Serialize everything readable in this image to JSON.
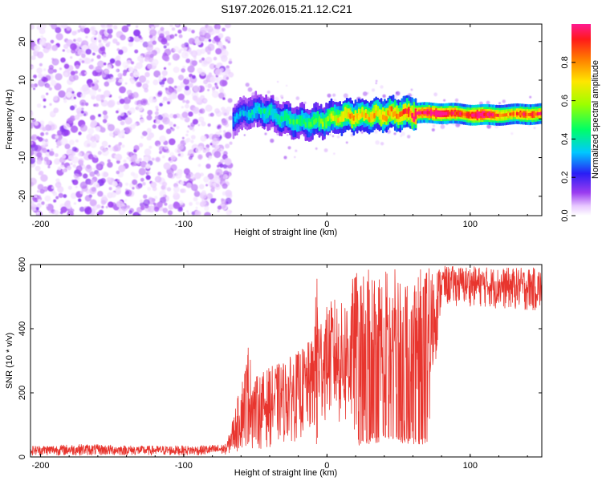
{
  "title": "S197.2026.015.21.12.C21",
  "colors": {
    "snr_line": "#e8352e",
    "frame": "#000000",
    "scatter_base": "#7a1fe0"
  },
  "chart_data": [
    {
      "id": "spectrogram",
      "type": "heatmap",
      "title": "S197.2026.015.21.12.C21",
      "xlabel": "Height of straight line (km)",
      "ylabel": "Frequency (Hz)",
      "xlim": [
        -207,
        150
      ],
      "ylim": [
        -25,
        24.5
      ],
      "xticks": [
        -200,
        -100,
        0,
        100
      ],
      "xtick_labels": [
        "-200",
        "-100",
        "0",
        "100"
      ],
      "yticks": [
        -20,
        -10,
        0,
        10,
        20
      ],
      "ytick_labels": [
        "-20",
        "-10",
        "0",
        "10",
        "20"
      ],
      "noise_region_x": [
        -207,
        -67
      ],
      "signal_region_x": [
        -67,
        150
      ],
      "ridge": {
        "x": [
          -67,
          -55,
          -45,
          -35,
          -25,
          -15,
          -5,
          5,
          15,
          25,
          35,
          45,
          55,
          62,
          75,
          85,
          95,
          105,
          115,
          125,
          135,
          150
        ],
        "y": [
          0.0,
          1.8,
          2.2,
          0.5,
          -0.5,
          -1.0,
          -0.5,
          0.3,
          0.8,
          0.8,
          1.0,
          1.3,
          1.4,
          1.5,
          1.5,
          1.4,
          1.2,
          1.0,
          1.0,
          1.1,
          1.2,
          1.3
        ],
        "amplitude": [
          0.25,
          0.3,
          0.35,
          0.35,
          0.4,
          0.4,
          0.45,
          0.55,
          0.65,
          0.6,
          0.65,
          0.7,
          0.75,
          0.85,
          0.95,
          0.9,
          0.75,
          0.98,
          0.85,
          0.65,
          0.8,
          0.8
        ]
      },
      "colorbar": {
        "label": "Normalized spectral amplitude",
        "range": [
          0,
          1
        ],
        "ticks": [
          0.0,
          0.2,
          0.4,
          0.6,
          0.8
        ],
        "tick_labels": [
          "0.0",
          "0.2",
          "0.4",
          "0.6",
          "0.8"
        ]
      }
    },
    {
      "id": "snr",
      "type": "line",
      "xlabel": "Height of straight line (km)",
      "ylabel": "SNR (10 * v/v)",
      "xlim": [
        -207,
        150
      ],
      "ylim": [
        0,
        600
      ],
      "xticks": [
        -200,
        -100,
        0,
        100
      ],
      "xtick_labels": [
        "-200",
        "-100",
        "0",
        "100"
      ],
      "yticks": [
        0,
        200,
        400,
        600
      ],
      "ytick_labels": [
        "0",
        "200",
        "400",
        "600"
      ],
      "series": [
        {
          "name": "SNR",
          "x": [
            -207,
            -190,
            -170,
            -150,
            -130,
            -110,
            -90,
            -70,
            -60,
            -55,
            -50,
            -45,
            -40,
            -35,
            -30,
            -25,
            -20,
            -15,
            -10,
            -7,
            -5,
            0,
            5,
            10,
            15,
            20,
            25,
            30,
            35,
            40,
            45,
            50,
            55,
            60,
            65,
            70,
            80,
            90,
            100,
            110,
            120,
            130,
            140,
            150
          ],
          "y": [
            20,
            20,
            22,
            20,
            20,
            22,
            20,
            25,
            45,
            90,
            110,
            80,
            90,
            100,
            110,
            120,
            140,
            150,
            180,
            200,
            230,
            300,
            330,
            360,
            380,
            410,
            440,
            480,
            500,
            520,
            525,
            530,
            520,
            525,
            530,
            530,
            535,
            540,
            535,
            540,
            530,
            540,
            535,
            530
          ]
        }
      ],
      "envelope": {
        "x": [
          -207,
          -170,
          -130,
          -90,
          -70,
          -60,
          -55,
          -50,
          -40,
          -30,
          -20,
          -10,
          -7,
          -5,
          0,
          5,
          10,
          20,
          30,
          40,
          50,
          60,
          70,
          80,
          100,
          120,
          150
        ],
        "min": [
          5,
          5,
          5,
          5,
          8,
          15,
          30,
          20,
          30,
          40,
          50,
          60,
          60,
          80,
          120,
          100,
          80,
          30,
          40,
          50,
          45,
          40,
          40,
          470,
          470,
          460,
          450
        ],
        "max": [
          35,
          40,
          35,
          35,
          40,
          230,
          340,
          250,
          280,
          300,
          330,
          370,
          560,
          450,
          470,
          500,
          480,
          580,
          585,
          590,
          590,
          585,
          590,
          595,
          595,
          590,
          590
        ]
      },
      "annotations": [
        {
          "x": -55,
          "y": 340,
          "label": ""
        },
        {
          "x": -7,
          "y": 555,
          "label": ""
        }
      ]
    }
  ]
}
